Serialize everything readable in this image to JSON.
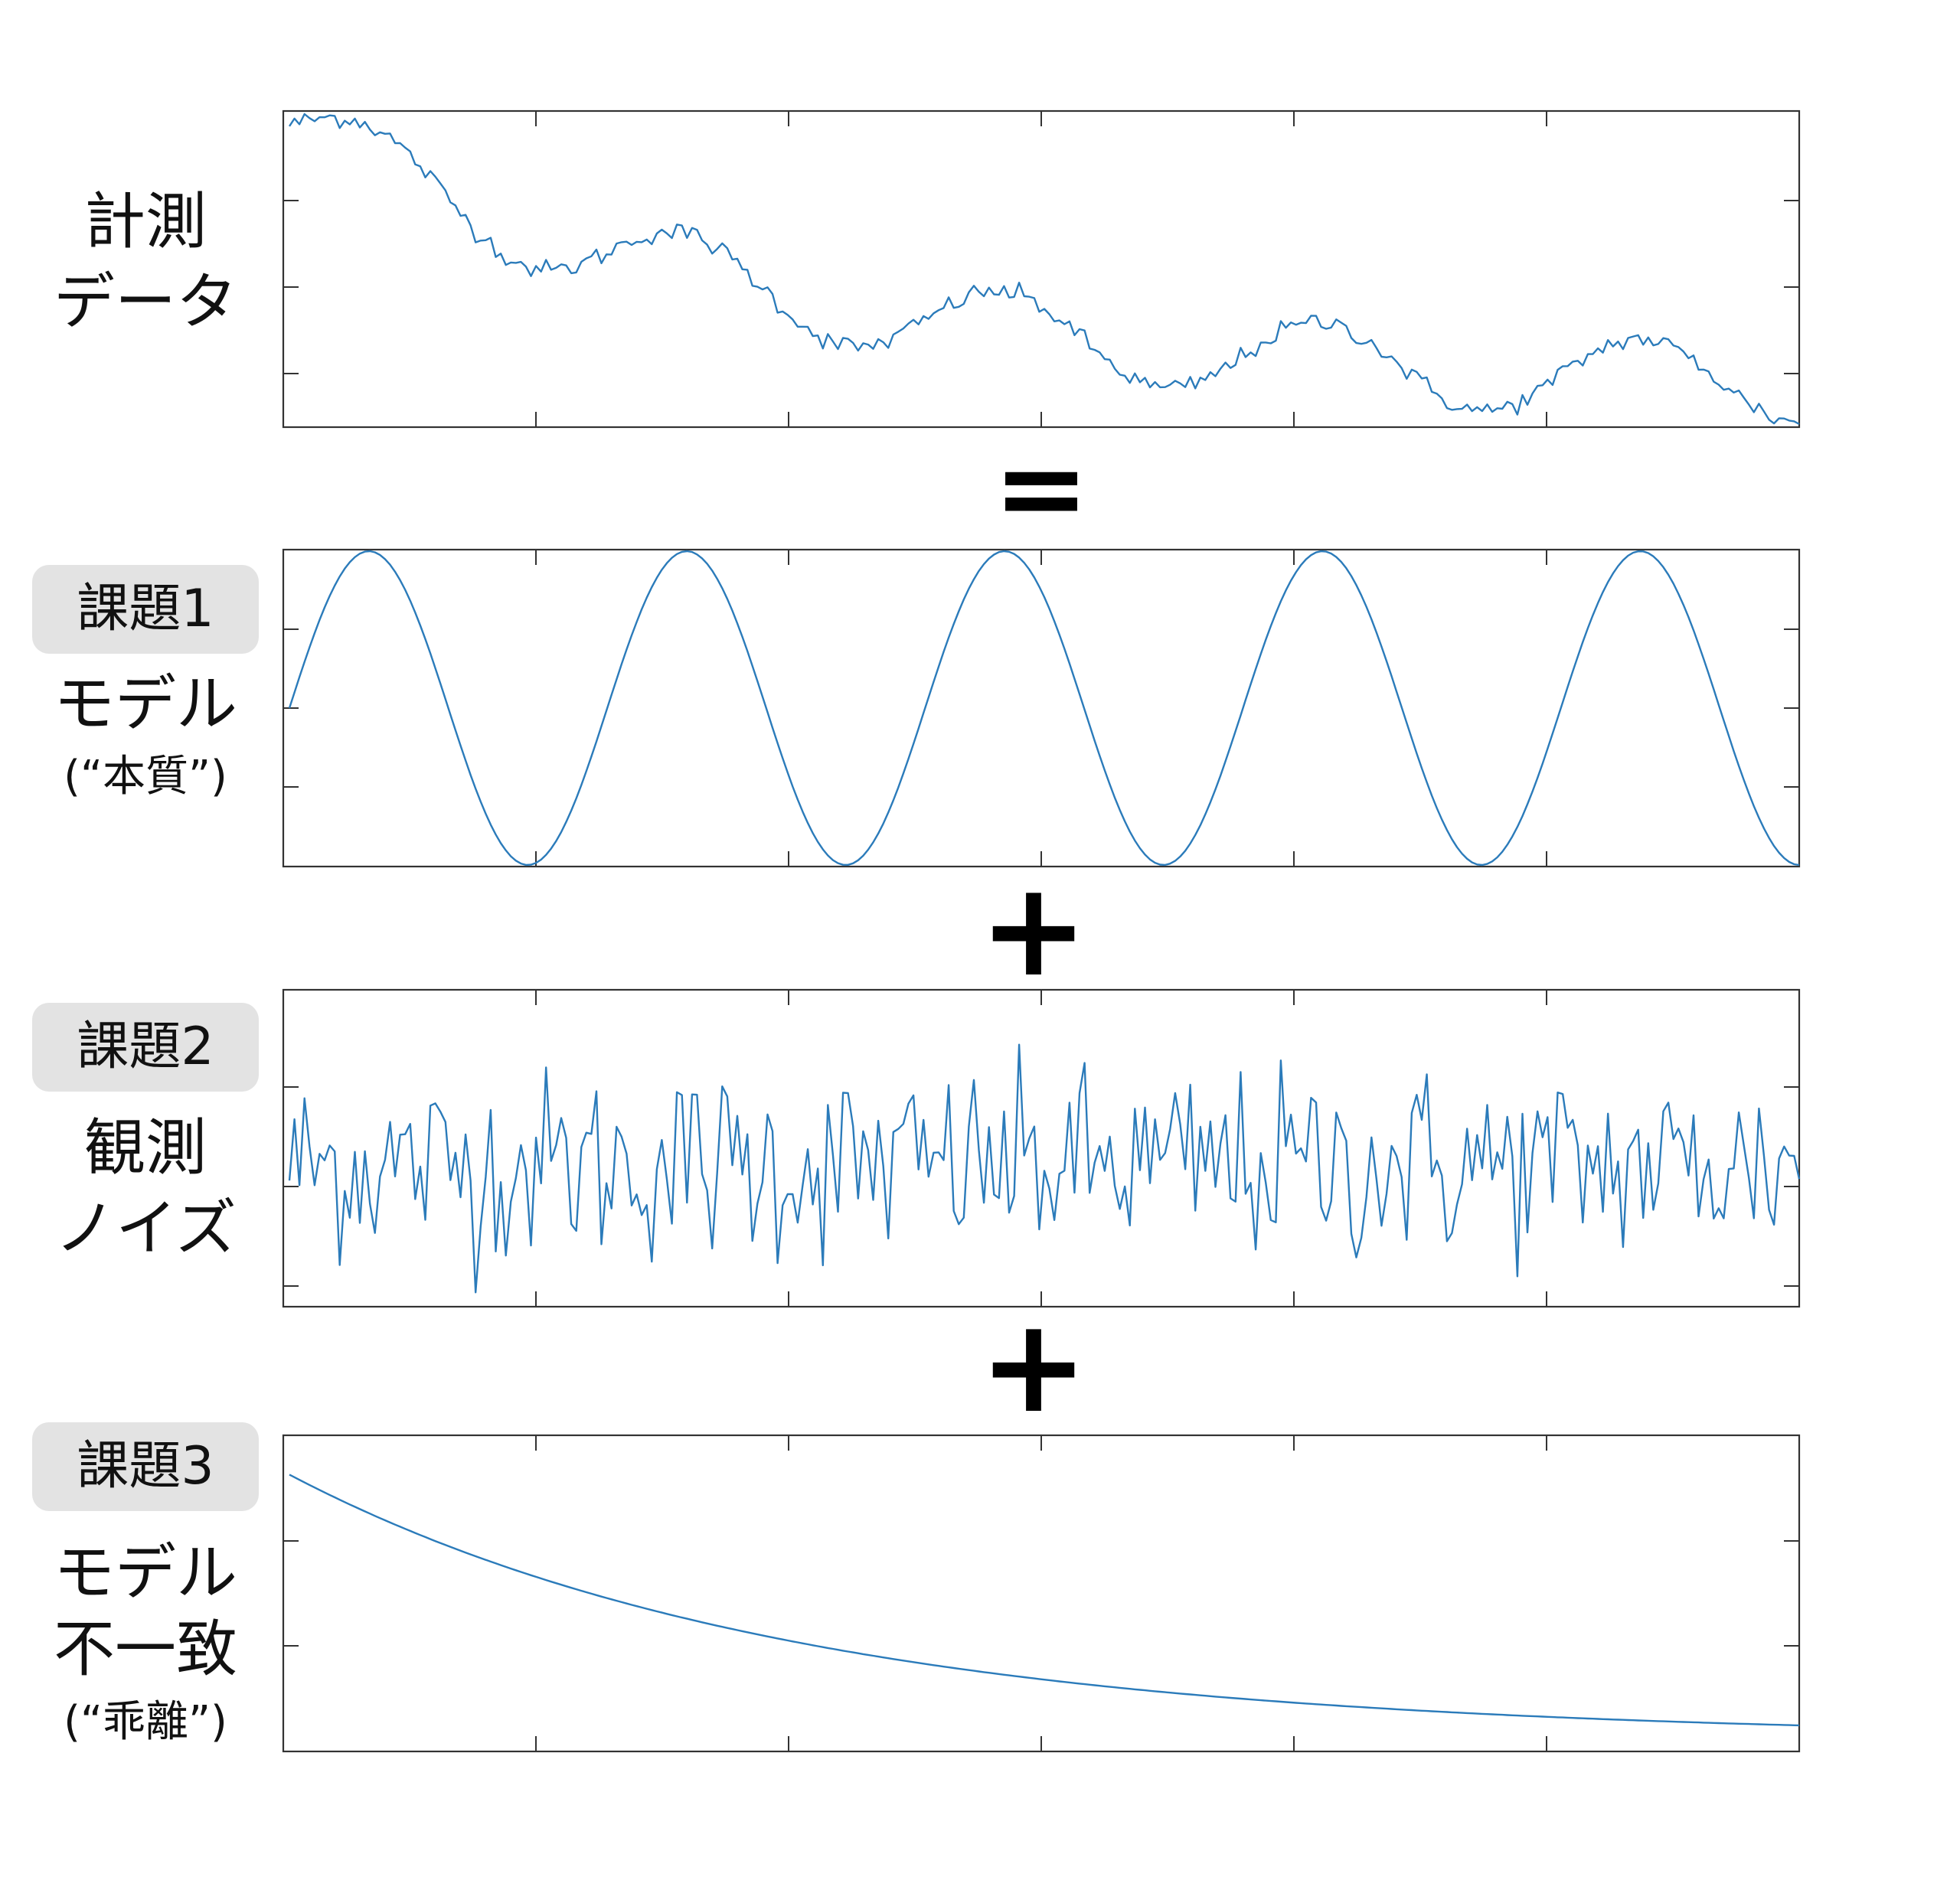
{
  "equals_symbol": "=",
  "plus_symbol": "+",
  "panels": {
    "data": {
      "title_line1": "計測",
      "title_line2": "データ"
    },
    "model": {
      "badge": "課題1",
      "title": "モデル",
      "subtitle": "(“本質”)"
    },
    "noise": {
      "badge": "課題2",
      "title_line1": "観測",
      "title_line2": "ノイズ"
    },
    "mismatch": {
      "badge": "課題3",
      "title_line1": "モデル",
      "title_line2": "不一致",
      "subtitle": "(“乖離”)"
    }
  },
  "chart_data": [
    {
      "type": "line",
      "name": "measured-data",
      "color": "#2b7bba",
      "description_series": "sum of sinusoid, noise and decaying offset",
      "x_range": [
        0,
        300
      ],
      "cycles": 4.75,
      "ticks_x": 6,
      "ticks_y": 4
    },
    {
      "type": "line",
      "name": "model-sinusoid",
      "color": "#2b7bba",
      "x_range": [
        0,
        300
      ],
      "cycles": 4.75,
      "ylim": [
        -1,
        1
      ],
      "ticks_x": 6,
      "ticks_y": 4
    },
    {
      "type": "line",
      "name": "observation-noise",
      "color": "#2b7bba",
      "x_range": [
        0,
        300
      ],
      "ticks_x": 6,
      "ticks_y": 3
    },
    {
      "type": "line",
      "name": "model-mismatch-decay",
      "color": "#2b7bba",
      "x_range": [
        0,
        300
      ],
      "ylim": [
        0,
        1
      ],
      "ticks_x": 6,
      "ticks_y": 3
    }
  ]
}
